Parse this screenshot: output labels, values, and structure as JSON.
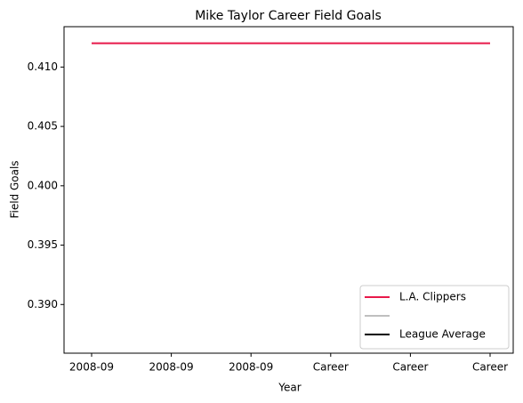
{
  "chart_data": {
    "type": "line",
    "title": "Mike Taylor  Career Field Goals",
    "x_label": "Year",
    "y_label": "Field Goals",
    "categories": [
      "2008-09",
      "2008-09",
      "2008-09",
      "Career",
      "Career",
      "Career"
    ],
    "series": [
      {
        "name": "L.A. Clippers",
        "color": "#e8194a",
        "values": [
          0.412,
          0.412,
          0.412,
          0.412,
          0.412,
          0.412
        ]
      },
      {
        "name": null,
        "color": "#bfbfbf",
        "values": [
          null,
          null,
          null,
          null,
          null,
          null
        ]
      },
      {
        "name": "League Average",
        "color": "#000000",
        "values": [
          null,
          null,
          null,
          null,
          null,
          null
        ]
      }
    ],
    "ylim": [
      0.3859,
      0.4134
    ],
    "yticks": [
      {
        "value": 0.39,
        "label": "0.390"
      },
      0.395,
      {
        "value": 0.4,
        "label": "0.400"
      },
      0.405,
      {
        "value": 0.41,
        "label": "0.410"
      }
    ],
    "grid": false,
    "legend": "lower right"
  }
}
